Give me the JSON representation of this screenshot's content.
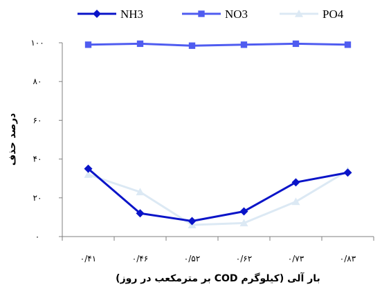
{
  "chart_data": {
    "type": "line",
    "x": [
      "۰/۴۱",
      "۰/۴۶",
      "۰/۵۲",
      "۰/۶۲",
      "۰/۷۳",
      "۰/۸۳"
    ],
    "xlabel": "بار آلی (کیلوگرم COD بر مترمکعب در روز)",
    "ylabel": "درصد حذف",
    "ylim": [
      0,
      100
    ],
    "yticks": [
      0,
      20,
      40,
      60,
      80,
      100
    ],
    "ytick_labels": [
      "۰",
      "۲۰",
      "۴۰",
      "۶۰",
      "۸۰",
      "۱۰۰"
    ],
    "grid": false,
    "legend_position": "top",
    "series": [
      {
        "name": "NH3",
        "color": "#0a14c8",
        "marker": "diamond",
        "values": [
          35,
          12,
          8,
          13,
          28,
          33
        ]
      },
      {
        "name": "NO3",
        "color": "#4f5cf0",
        "marker": "square",
        "values": [
          99,
          99.5,
          98.5,
          99,
          99.5,
          99
        ]
      },
      {
        "name": "PO4",
        "color": "#dce9f4",
        "marker": "triangle",
        "values": [
          32,
          23,
          6,
          7,
          18,
          34
        ]
      }
    ]
  }
}
